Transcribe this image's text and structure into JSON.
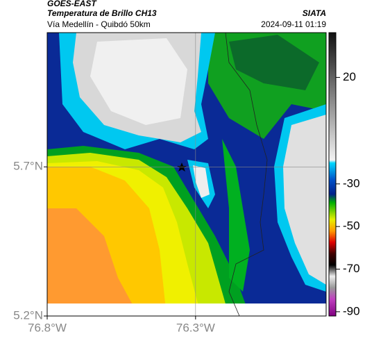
{
  "header": {
    "source": "GOES-EAST",
    "product": "Temperatura de Brillo CH13",
    "org": "SIATA",
    "route": "Vía Medellín - Quibdó 50km",
    "timestamp": "2024-09-11 01:19"
  },
  "map": {
    "xlim": [
      -76.8,
      -75.86
    ],
    "ylim": [
      5.2,
      6.15
    ],
    "xticks": [
      {
        "value": -76.8,
        "label": "76.8°W"
      },
      {
        "value": -76.3,
        "label": "76.3°W"
      }
    ],
    "yticks": [
      {
        "value": 5.2,
        "label": "5.2°N"
      },
      {
        "value": 5.7,
        "label": "5.7°N"
      }
    ],
    "grid": true
  },
  "colorbar": {
    "lim": [
      41,
      -92
    ],
    "ticks": [
      20,
      -30,
      -50,
      -70,
      -90
    ]
  }
}
